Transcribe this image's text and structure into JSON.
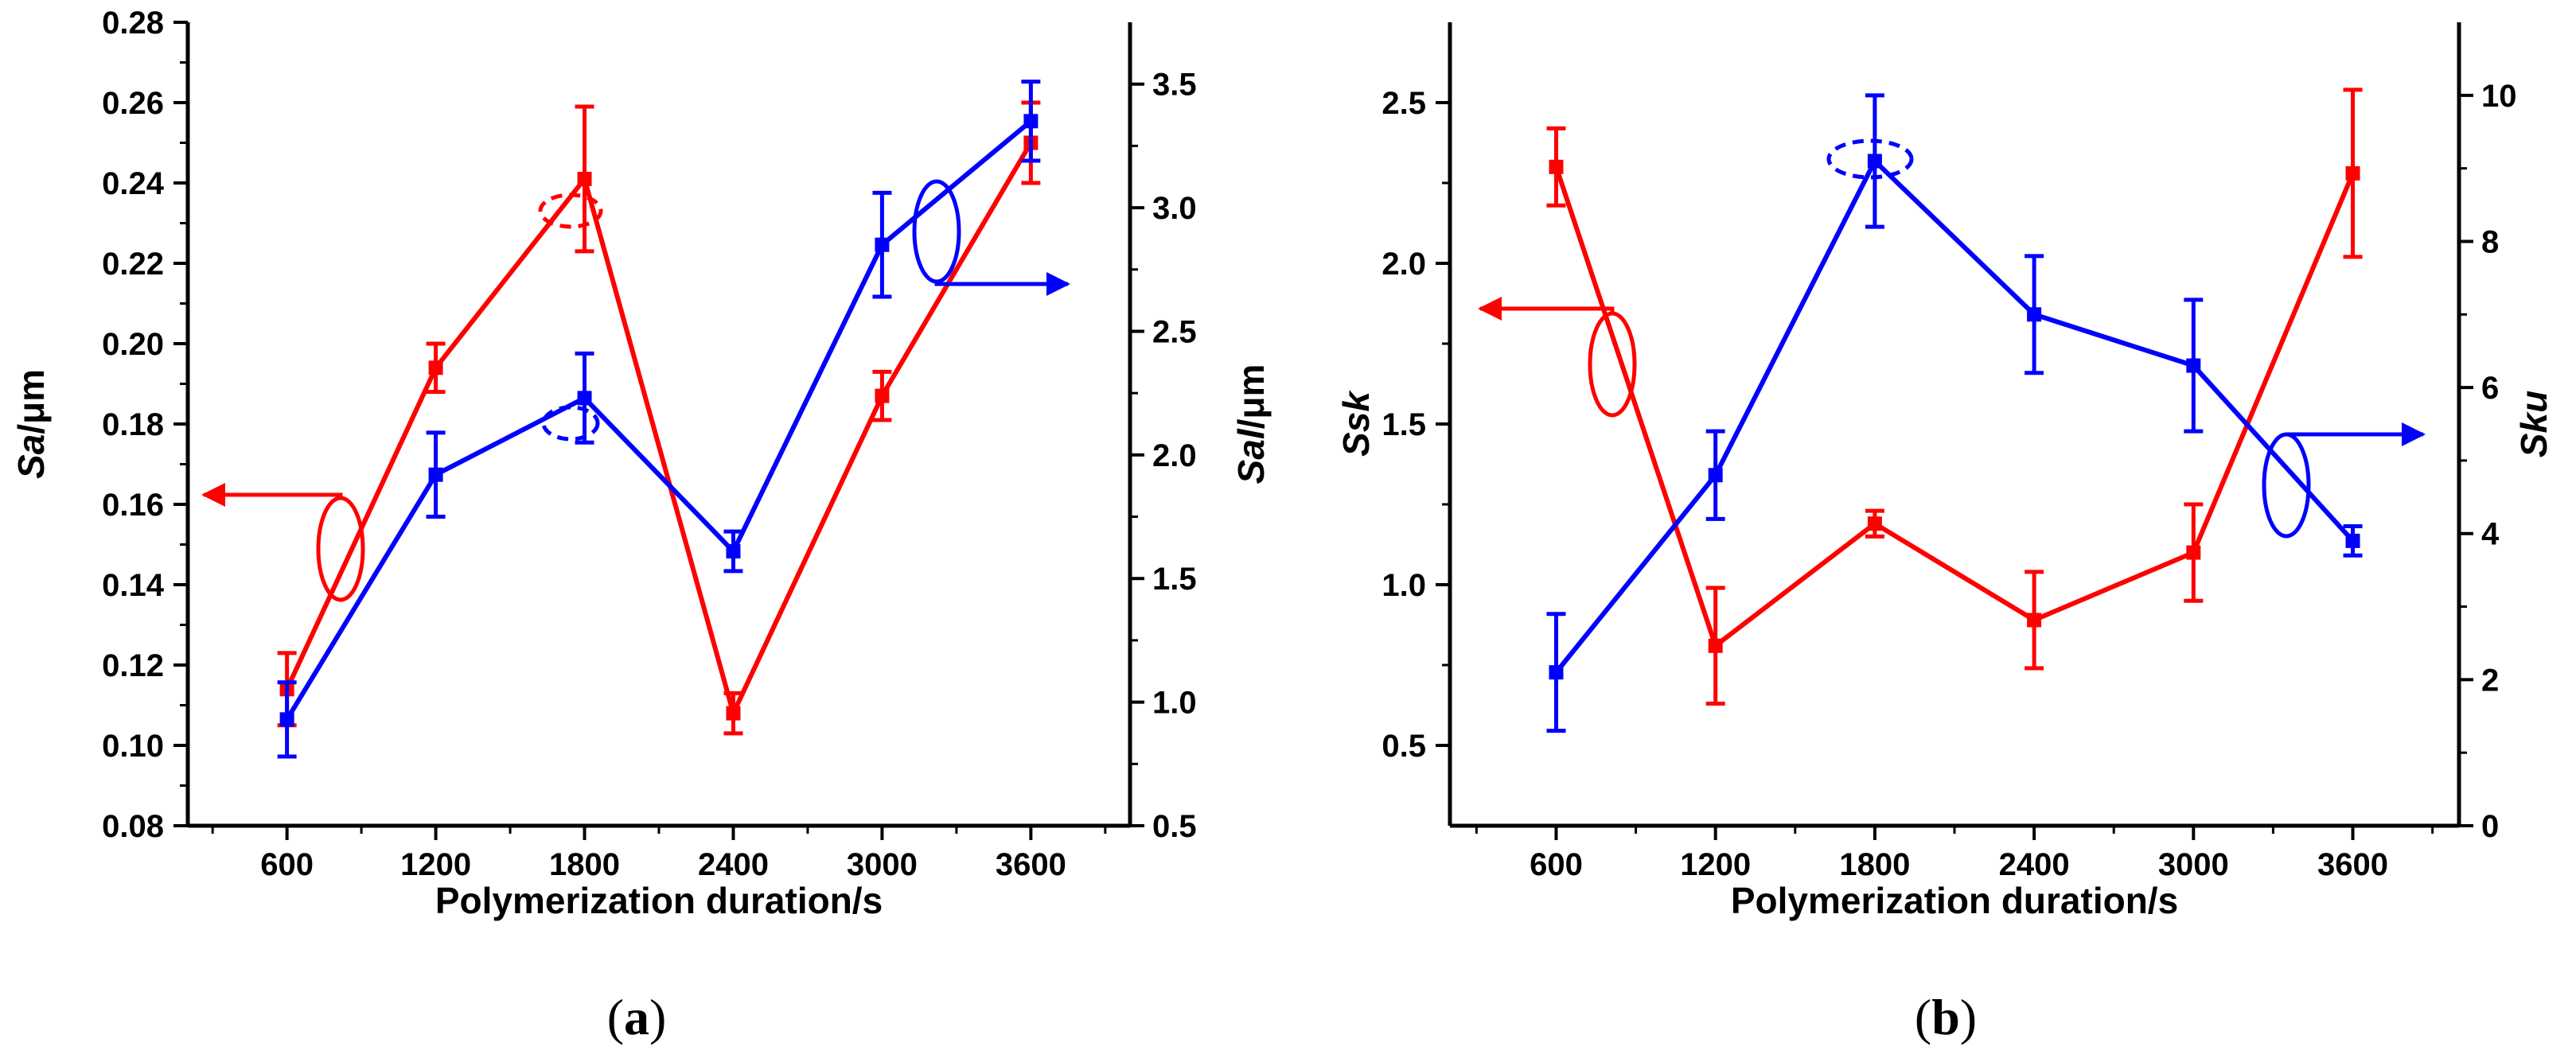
{
  "colors": {
    "red": "#ff0000",
    "blue": "#0000ff",
    "axis": "#000000"
  },
  "chart_data": [
    {
      "type": "line",
      "panel": "a",
      "caption_letter": "a",
      "xlabel": "Polymerization duration/s",
      "x": [
        600,
        1200,
        1800,
        2400,
        3000,
        3600
      ],
      "xlim": [
        200,
        4000
      ],
      "ylabel_left": {
        "main": "Sa",
        "unit": "/μm"
      },
      "ylabel_right": {
        "main": "Sal",
        "unit": "/μm"
      },
      "ylim_left": [
        0.08,
        0.28
      ],
      "yticks_left": [
        "0.08",
        "0.10",
        "0.12",
        "0.14",
        "0.16",
        "0.18",
        "0.20",
        "0.22",
        "0.24",
        "0.26",
        "0.28"
      ],
      "ylim_right": [
        0.5,
        3.75
      ],
      "yticks_right": [
        "0.5",
        "1.0",
        "1.5",
        "2.0",
        "2.5",
        "3.0",
        "3.5"
      ],
      "series": [
        {
          "name": "Sa",
          "axis": "left",
          "color": "red",
          "values": [
            0.114,
            0.194,
            0.241,
            0.108,
            0.187,
            0.25
          ],
          "errors": [
            0.009,
            0.006,
            0.018,
            0.005,
            0.006,
            0.01
          ]
        },
        {
          "name": "Sal",
          "axis": "right",
          "color": "blue",
          "values": [
            0.93,
            1.92,
            2.23,
            1.61,
            2.85,
            3.35
          ],
          "errors": [
            0.15,
            0.17,
            0.18,
            0.08,
            0.21,
            0.16
          ]
        }
      ]
    },
    {
      "type": "line",
      "panel": "b",
      "caption_letter": "b",
      "xlabel": "Polymerization duration/s",
      "x": [
        600,
        1200,
        1800,
        2400,
        3000,
        3600
      ],
      "xlim": [
        200,
        4000
      ],
      "ylabel_left": {
        "main": "Ssk",
        "unit": ""
      },
      "ylabel_right": {
        "main": "Sku",
        "unit": ""
      },
      "ylim_left": [
        0.25,
        2.75
      ],
      "yticks_left": [
        "0.5",
        "1.0",
        "1.5",
        "2.0",
        "2.5"
      ],
      "ylim_right": [
        0,
        11
      ],
      "yticks_right": [
        "0",
        "2",
        "4",
        "6",
        "8",
        "10"
      ],
      "series": [
        {
          "name": "Ssk",
          "axis": "left",
          "color": "red",
          "values": [
            2.3,
            0.81,
            1.19,
            0.89,
            1.1,
            2.28
          ],
          "errors": [
            0.12,
            0.18,
            0.04,
            0.15,
            0.15,
            0.26
          ]
        },
        {
          "name": "Sku",
          "axis": "right",
          "color": "blue",
          "values": [
            2.1,
            4.8,
            9.1,
            7.0,
            6.3,
            3.9
          ],
          "errors": [
            0.8,
            0.6,
            0.9,
            0.8,
            0.9,
            0.2
          ]
        }
      ]
    }
  ]
}
